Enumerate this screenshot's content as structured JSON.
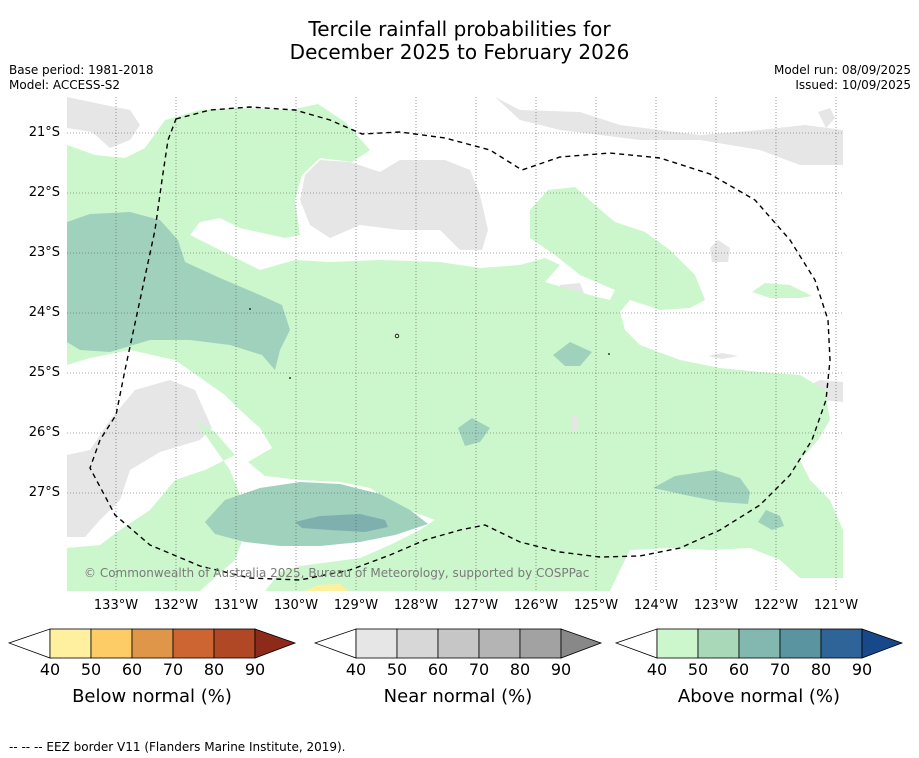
{
  "title_line1": "Tercile rainfall probabilities for",
  "title_line2": "December 2025 to February 2026",
  "base_period": "Base period: 1981-2018",
  "model": "Model: ACCESS-S2",
  "model_run": "Model run: 08/09/2025",
  "issued": "Issued: 10/09/2025",
  "latitude_ticks": [
    "21°S",
    "22°S",
    "23°S",
    "24°S",
    "25°S",
    "26°S",
    "27°S"
  ],
  "longitude_ticks": [
    "133°W",
    "132°W",
    "131°W",
    "130°W",
    "129°W",
    "128°W",
    "127°W",
    "126°W",
    "125°W",
    "124°W",
    "123°W",
    "122°W",
    "121°W"
  ],
  "copyright": "© Commonwealth of Australia 2025, Bureau of Meteorology, supported by COSPPac",
  "colorbars": [
    {
      "label": "Below normal (%)",
      "ticks": [
        "40",
        "50",
        "60",
        "70",
        "80",
        "90"
      ],
      "colors": [
        "#fff0a0",
        "#fdcc66",
        "#e09648",
        "#cc6532",
        "#b04825",
        "#8e2a1a"
      ]
    },
    {
      "label": "Near normal (%)",
      "ticks": [
        "40",
        "50",
        "60",
        "70",
        "80",
        "90"
      ],
      "colors": [
        "#e6e6e6",
        "#d7d7d7",
        "#c6c6c6",
        "#b4b4b4",
        "#a2a2a2",
        "#888888"
      ]
    },
    {
      "label": "Above normal (%)",
      "ticks": [
        "40",
        "50",
        "60",
        "70",
        "80",
        "90"
      ],
      "colors": [
        "#ccf7cc",
        "#a8d8b8",
        "#82b8b0",
        "#5a94a0",
        "#2f6498",
        "#17488a"
      ]
    }
  ],
  "footnote": "--  --  -- EEZ border V11 (Flanders Marine Institute, 2019)."
}
